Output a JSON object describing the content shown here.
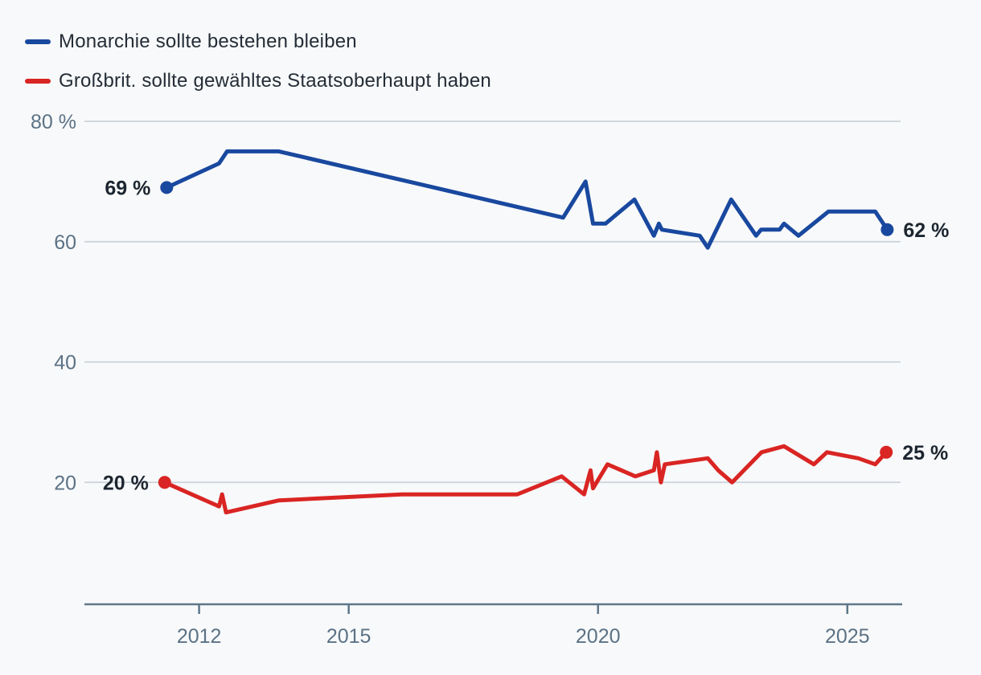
{
  "legend": {
    "items": [
      {
        "label": "Monarchie sollte bestehen bleiben",
        "color": "#19489f"
      },
      {
        "label": "Großbrit. sollte gewähltes Staatsoberhaupt haben",
        "color": "#d92523"
      }
    ]
  },
  "colors": {
    "background": "#f8f9fa",
    "grid": "#cad3da",
    "axis": "#5f7789",
    "tick_label": "#5b7286",
    "value_label": "#1c2630",
    "legend_text": "#242d37",
    "series_blue": "#19489f",
    "series_red": "#d92523"
  },
  "chart_data": {
    "type": "line",
    "title": "",
    "xlabel": "",
    "ylabel": "",
    "legend_position": "top-left",
    "grid": "horizontal",
    "x_axis": {
      "ticks": [
        2012,
        2015,
        2020,
        2025
      ],
      "range": [
        2009.7,
        2026.1
      ]
    },
    "y_axis": {
      "unit": "%",
      "range": [
        0,
        80
      ],
      "ticks": [
        {
          "value": 80,
          "label": "80 %"
        },
        {
          "value": 60,
          "label": "60"
        },
        {
          "value": 40,
          "label": "40"
        },
        {
          "value": 20,
          "label": "20"
        }
      ]
    },
    "series": [
      {
        "id": "monarchie",
        "name": "Monarchie sollte bestehen bleiben",
        "color": "#19489f",
        "start_label": "69 %",
        "end_label": "62 %",
        "points": [
          [
            2011.35,
            69
          ],
          [
            2012.4,
            73
          ],
          [
            2012.56,
            75
          ],
          [
            2013.6,
            75
          ],
          [
            2019.3,
            64
          ],
          [
            2019.75,
            70
          ],
          [
            2019.9,
            63
          ],
          [
            2020.15,
            63
          ],
          [
            2020.73,
            67
          ],
          [
            2021.12,
            61
          ],
          [
            2021.22,
            63
          ],
          [
            2021.28,
            62
          ],
          [
            2022.04,
            61
          ],
          [
            2022.2,
            59
          ],
          [
            2022.67,
            67
          ],
          [
            2023.17,
            61
          ],
          [
            2023.27,
            62
          ],
          [
            2023.64,
            62
          ],
          [
            2023.73,
            63
          ],
          [
            2024.02,
            61
          ],
          [
            2024.62,
            65
          ],
          [
            2025.56,
            65
          ],
          [
            2025.8,
            62
          ]
        ]
      },
      {
        "id": "staatsoberhaupt",
        "name": "Großbrit. sollte gewähltes Staatsoberhaupt haben",
        "color": "#d92523",
        "start_label": "20 %",
        "end_label": "25 %",
        "points": [
          [
            2011.31,
            20
          ],
          [
            2012.4,
            16
          ],
          [
            2012.46,
            18
          ],
          [
            2012.54,
            15
          ],
          [
            2013.6,
            17
          ],
          [
            2016.07,
            18
          ],
          [
            2018.38,
            18
          ],
          [
            2019.27,
            21
          ],
          [
            2019.72,
            18
          ],
          [
            2019.85,
            22
          ],
          [
            2019.9,
            19
          ],
          [
            2020.19,
            23
          ],
          [
            2020.75,
            21
          ],
          [
            2021.12,
            22
          ],
          [
            2021.18,
            25
          ],
          [
            2021.26,
            20
          ],
          [
            2021.34,
            23
          ],
          [
            2022.2,
            24
          ],
          [
            2022.41,
            22
          ],
          [
            2022.69,
            20
          ],
          [
            2023.28,
            25
          ],
          [
            2023.73,
            26
          ],
          [
            2024.33,
            23
          ],
          [
            2024.59,
            25
          ],
          [
            2025.22,
            24
          ],
          [
            2025.56,
            23
          ],
          [
            2025.78,
            25
          ]
        ]
      }
    ]
  }
}
